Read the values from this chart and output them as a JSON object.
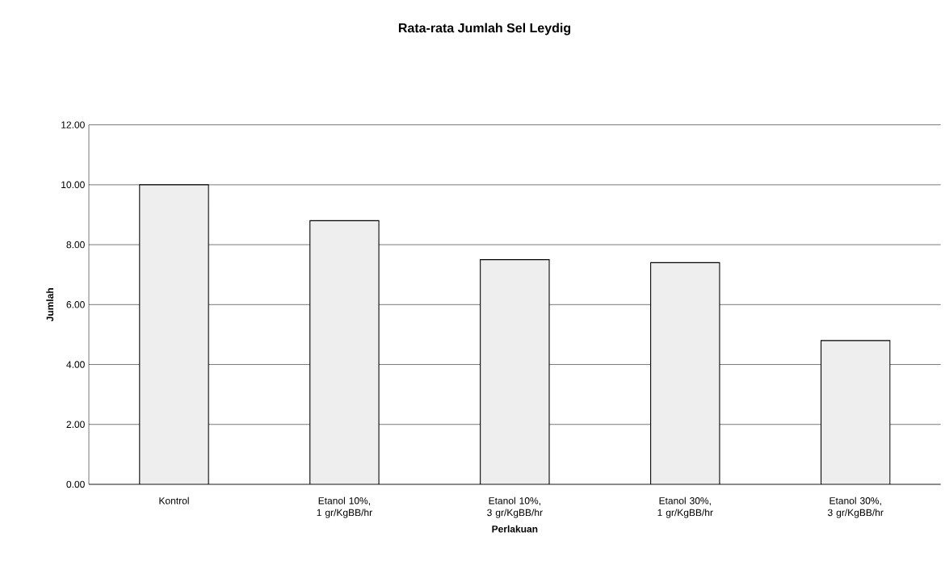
{
  "chart_data": {
    "type": "bar",
    "title": "Rata-rata Jumlah Sel Leydig",
    "xlabel": "Perlakuan",
    "ylabel": "Jumlah",
    "categories": [
      "Kontrol",
      "Etanol 10%, 1 gr/KgBB/hr",
      "Etanol 10%, 3 gr/KgBB/hr",
      "Etanol 30%, 1 gr/KgBB/hr",
      "Etanol 30%, 3 gr/KgBB/hr"
    ],
    "values": [
      10.0,
      8.8,
      7.5,
      7.4,
      4.8
    ],
    "color": "#eeeeee",
    "ylim": [
      0,
      12
    ],
    "yticks": [
      {
        "value": 0,
        "label": "0.00"
      },
      {
        "value": 2,
        "label": "2.00"
      },
      {
        "value": 4,
        "label": "4.00"
      },
      {
        "value": 6,
        "label": "6.00"
      },
      {
        "value": 8,
        "label": "8.00"
      },
      {
        "value": 10,
        "label": "10.00"
      },
      {
        "value": 12,
        "label": "12.00"
      }
    ],
    "grid": "y"
  }
}
